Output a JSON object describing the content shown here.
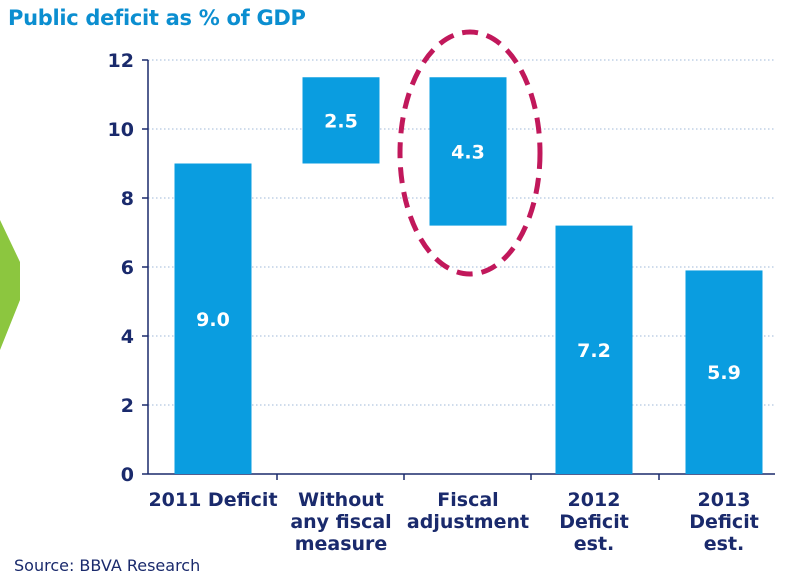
{
  "title": "Public deficit as % of GDP",
  "source": "Source: BBVA Research",
  "colors": {
    "bar": "#0a9de0",
    "text": "#1a2a6c",
    "title": "#0b8ed0",
    "highlight": "#c1185b",
    "arrow": "#8cc63f",
    "grid": "#9fb8d8"
  },
  "chart_data": {
    "type": "bar",
    "subtype": "waterfall",
    "title": "Public deficit as % of GDP",
    "categories": [
      [
        "2011 Deficit"
      ],
      [
        "Without",
        "any fiscal",
        "measure"
      ],
      [
        "Fiscal",
        "adjustment"
      ],
      [
        "2012",
        "Deficit",
        "est."
      ],
      [
        "2013",
        "Deficit",
        "est."
      ]
    ],
    "bars": [
      {
        "start": 0,
        "end": 9.0,
        "label": "9.0"
      },
      {
        "start": 9.0,
        "end": 11.5,
        "label": "2.5"
      },
      {
        "start": 7.2,
        "end": 11.5,
        "label": "4.3"
      },
      {
        "start": 0,
        "end": 7.2,
        "label": "7.2"
      },
      {
        "start": 0,
        "end": 5.9,
        "label": "5.9"
      }
    ],
    "yticks": [
      "0",
      "2",
      "4",
      "6",
      "8",
      "10",
      "12"
    ],
    "ylim": [
      0,
      12
    ],
    "grid": true,
    "highlight": "Fiscal adjustment"
  }
}
